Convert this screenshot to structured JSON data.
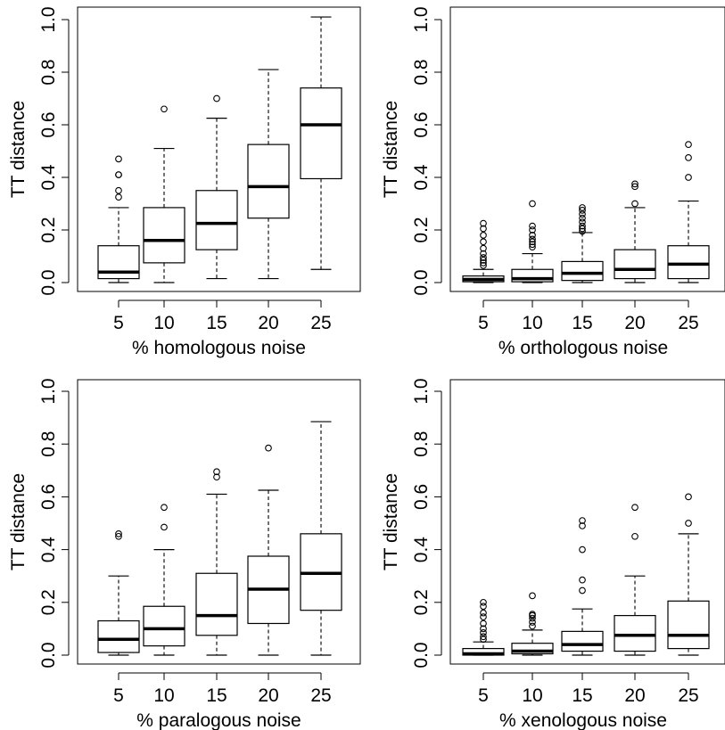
{
  "chart_data": [
    {
      "type": "boxplot",
      "xlabel": "% homologous noise",
      "ylabel": "TT distance",
      "categories": [
        "5",
        "10",
        "15",
        "20",
        "25"
      ],
      "ylim": [
        0,
        1
      ],
      "yticks": [
        "0.0",
        "0.2",
        "0.4",
        "0.6",
        "0.8",
        "1.0"
      ],
      "boxes": [
        {
          "min": 0.0,
          "q1": 0.015,
          "median": 0.04,
          "q3": 0.14,
          "max": 0.285,
          "outliers": [
            0.325,
            0.35,
            0.41,
            0.41,
            0.47
          ]
        },
        {
          "min": 0.0,
          "q1": 0.075,
          "median": 0.16,
          "q3": 0.285,
          "max": 0.51,
          "outliers": [
            0.66
          ]
        },
        {
          "min": 0.015,
          "q1": 0.125,
          "median": 0.225,
          "q3": 0.35,
          "max": 0.625,
          "outliers": [
            0.7
          ]
        },
        {
          "min": 0.015,
          "q1": 0.245,
          "median": 0.365,
          "q3": 0.525,
          "max": 0.81,
          "outliers": []
        },
        {
          "min": 0.05,
          "q1": 0.395,
          "median": 0.6,
          "q3": 0.74,
          "max": 1.01,
          "outliers": []
        }
      ]
    },
    {
      "type": "boxplot",
      "xlabel": "% orthologous noise",
      "ylabel": "TT distance",
      "categories": [
        "5",
        "10",
        "15",
        "20",
        "25"
      ],
      "ylim": [
        0,
        1
      ],
      "yticks": [
        "0.0",
        "0.2",
        "0.4",
        "0.6",
        "0.8",
        "1.0"
      ],
      "boxes": [
        {
          "min": 0.0,
          "q1": 0.003,
          "median": 0.012,
          "q3": 0.025,
          "max": 0.05,
          "outliers": [
            0.065,
            0.075,
            0.085,
            0.095,
            0.11,
            0.13,
            0.155,
            0.18,
            0.205,
            0.225
          ]
        },
        {
          "min": 0.0,
          "q1": 0.003,
          "median": 0.015,
          "q3": 0.05,
          "max": 0.11,
          "outliers": [
            0.135,
            0.145,
            0.155,
            0.165,
            0.18,
            0.2,
            0.215,
            0.3
          ]
        },
        {
          "min": 0.0,
          "q1": 0.008,
          "median": 0.035,
          "q3": 0.08,
          "max": 0.19,
          "outliers": [
            0.195,
            0.205,
            0.215,
            0.23,
            0.245,
            0.26,
            0.275,
            0.285
          ]
        },
        {
          "min": 0.0,
          "q1": 0.015,
          "median": 0.05,
          "q3": 0.125,
          "max": 0.285,
          "outliers": [
            0.3,
            0.365,
            0.375
          ]
        },
        {
          "min": 0.0,
          "q1": 0.015,
          "median": 0.07,
          "q3": 0.14,
          "max": 0.31,
          "outliers": [
            0.4,
            0.475,
            0.525
          ]
        }
      ]
    },
    {
      "type": "boxplot",
      "xlabel": "% paralogous noise",
      "ylabel": "TT distance",
      "categories": [
        "5",
        "10",
        "15",
        "20",
        "25"
      ],
      "ylim": [
        0,
        1
      ],
      "yticks": [
        "0.0",
        "0.2",
        "0.4",
        "0.6",
        "0.8",
        "1.0"
      ],
      "boxes": [
        {
          "min": 0.0,
          "q1": 0.01,
          "median": 0.06,
          "q3": 0.13,
          "max": 0.3,
          "outliers": [
            0.45,
            0.46
          ]
        },
        {
          "min": 0.0,
          "q1": 0.035,
          "median": 0.1,
          "q3": 0.185,
          "max": 0.4,
          "outliers": [
            0.485,
            0.56
          ]
        },
        {
          "min": 0.0,
          "q1": 0.075,
          "median": 0.15,
          "q3": 0.31,
          "max": 0.61,
          "outliers": [
            0.675,
            0.695
          ]
        },
        {
          "min": 0.0,
          "q1": 0.12,
          "median": 0.25,
          "q3": 0.375,
          "max": 0.625,
          "outliers": [
            0.785
          ]
        },
        {
          "min": 0.0,
          "q1": 0.17,
          "median": 0.31,
          "q3": 0.46,
          "max": 0.885,
          "outliers": []
        }
      ]
    },
    {
      "type": "boxplot",
      "xlabel": "% xenologous noise",
      "ylabel": "TT distance",
      "categories": [
        "5",
        "10",
        "15",
        "20",
        "25"
      ],
      "ylim": [
        0,
        1
      ],
      "yticks": [
        "0.0",
        "0.2",
        "0.4",
        "0.6",
        "0.8",
        "1.0"
      ],
      "boxes": [
        {
          "min": 0.0,
          "q1": 0.0,
          "median": 0.005,
          "q3": 0.025,
          "max": 0.05,
          "outliers": [
            0.06,
            0.07,
            0.085,
            0.1,
            0.12,
            0.145,
            0.16,
            0.185,
            0.2
          ]
        },
        {
          "min": 0.0,
          "q1": 0.005,
          "median": 0.015,
          "q3": 0.045,
          "max": 0.095,
          "outliers": [
            0.11,
            0.125,
            0.14,
            0.15,
            0.155,
            0.225
          ]
        },
        {
          "min": 0.0,
          "q1": 0.015,
          "median": 0.04,
          "q3": 0.09,
          "max": 0.175,
          "outliers": [
            0.245,
            0.285,
            0.4,
            0.49,
            0.51
          ]
        },
        {
          "min": 0.0,
          "q1": 0.015,
          "median": 0.075,
          "q3": 0.15,
          "max": 0.3,
          "outliers": [
            0.45,
            0.56
          ]
        },
        {
          "min": 0.0,
          "q1": 0.025,
          "median": 0.075,
          "q3": 0.205,
          "max": 0.46,
          "outliers": [
            0.5,
            0.6
          ]
        }
      ]
    }
  ]
}
